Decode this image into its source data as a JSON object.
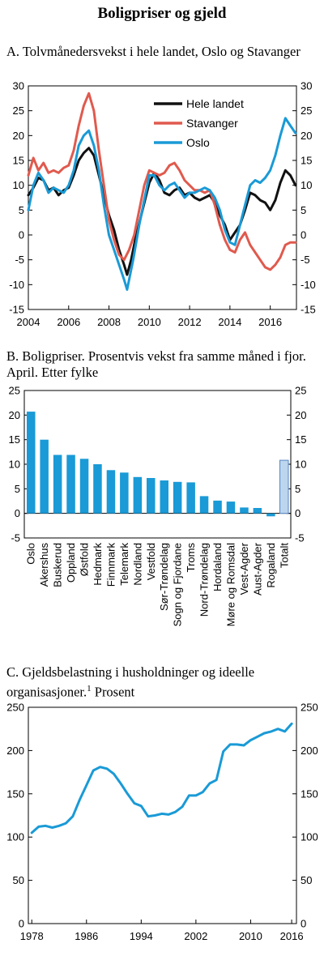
{
  "title": "Boligpriser og gjeld",
  "colors": {
    "black": "#111111",
    "red": "#e05a4e",
    "blue": "#1a9ad6",
    "bar": "#1a9ad6",
    "bar_light": "#bcd6ee"
  },
  "chart_data": [
    {
      "type": "line",
      "title": "A. Tolvmånedersvekst i hele landet, Oslo og Stavanger",
      "xlim": [
        2004,
        2017.3
      ],
      "ylim": [
        -15,
        30
      ],
      "x_ticks": [
        "2004",
        "2006",
        "2008",
        "2010",
        "2012",
        "2014",
        "2016"
      ],
      "y_ticks": [
        "30",
        "25",
        "20",
        "15",
        "10",
        "5",
        "0",
        "-5",
        "-10",
        "-15"
      ],
      "legend_position": "top-right",
      "series": [
        {
          "name": "Hele landet",
          "color": "#111111",
          "points": [
            [
              2004.0,
              8
            ],
            [
              2004.25,
              9.5
            ],
            [
              2004.5,
              11.5
            ],
            [
              2004.75,
              11
            ],
            [
              2005.0,
              9
            ],
            [
              2005.25,
              9.5
            ],
            [
              2005.5,
              8
            ],
            [
              2005.75,
              9
            ],
            [
              2006.0,
              9.5
            ],
            [
              2006.25,
              12
            ],
            [
              2006.5,
              15
            ],
            [
              2006.75,
              16.5
            ],
            [
              2007.0,
              17.5
            ],
            [
              2007.25,
              16
            ],
            [
              2007.5,
              12
            ],
            [
              2007.75,
              8
            ],
            [
              2008.0,
              4
            ],
            [
              2008.25,
              1
            ],
            [
              2008.5,
              -3
            ],
            [
              2008.75,
              -6
            ],
            [
              2008.9,
              -8
            ],
            [
              2009.1,
              -5
            ],
            [
              2009.3,
              -1
            ],
            [
              2009.6,
              4
            ],
            [
              2010.0,
              10.5
            ],
            [
              2010.25,
              12.5
            ],
            [
              2010.5,
              11
            ],
            [
              2010.75,
              8.5
            ],
            [
              2011.0,
              8
            ],
            [
              2011.25,
              9
            ],
            [
              2011.5,
              9.5
            ],
            [
              2011.75,
              8
            ],
            [
              2012.0,
              8.5
            ],
            [
              2012.25,
              7.5
            ],
            [
              2012.5,
              7
            ],
            [
              2012.75,
              7.5
            ],
            [
              2013.0,
              8
            ],
            [
              2013.25,
              6.5
            ],
            [
              2013.5,
              4
            ],
            [
              2013.75,
              2
            ],
            [
              2014.0,
              -1
            ],
            [
              2014.25,
              0.5
            ],
            [
              2014.5,
              2
            ],
            [
              2014.75,
              5
            ],
            [
              2015.0,
              8.5
            ],
            [
              2015.25,
              8
            ],
            [
              2015.5,
              7
            ],
            [
              2015.75,
              6.5
            ],
            [
              2016.0,
              5
            ],
            [
              2016.25,
              7
            ],
            [
              2016.5,
              10.5
            ],
            [
              2016.75,
              13
            ],
            [
              2017.0,
              12
            ],
            [
              2017.25,
              10
            ]
          ]
        },
        {
          "name": "Stavanger",
          "color": "#e05a4e",
          "points": [
            [
              2004.0,
              12
            ],
            [
              2004.25,
              15.5
            ],
            [
              2004.5,
              13
            ],
            [
              2004.75,
              14.5
            ],
            [
              2005.0,
              12.5
            ],
            [
              2005.25,
              13
            ],
            [
              2005.5,
              12.5
            ],
            [
              2005.75,
              13.5
            ],
            [
              2006.0,
              14
            ],
            [
              2006.25,
              17
            ],
            [
              2006.5,
              22
            ],
            [
              2006.75,
              26
            ],
            [
              2007.0,
              28.5
            ],
            [
              2007.25,
              25
            ],
            [
              2007.5,
              17
            ],
            [
              2007.75,
              10
            ],
            [
              2008.0,
              3
            ],
            [
              2008.25,
              -1
            ],
            [
              2008.5,
              -4
            ],
            [
              2008.75,
              -5
            ],
            [
              2009.0,
              -3
            ],
            [
              2009.25,
              0
            ],
            [
              2009.5,
              5
            ],
            [
              2009.75,
              10
            ],
            [
              2010.0,
              13
            ],
            [
              2010.25,
              12.5
            ],
            [
              2010.5,
              12
            ],
            [
              2010.75,
              12.5
            ],
            [
              2011.0,
              14
            ],
            [
              2011.25,
              14.5
            ],
            [
              2011.5,
              13
            ],
            [
              2011.75,
              11
            ],
            [
              2012.0,
              10
            ],
            [
              2012.25,
              9
            ],
            [
              2012.5,
              9
            ],
            [
              2012.75,
              8.5
            ],
            [
              2013.0,
              9
            ],
            [
              2013.25,
              6
            ],
            [
              2013.5,
              2
            ],
            [
              2013.75,
              -1
            ],
            [
              2014.0,
              -3
            ],
            [
              2014.25,
              -3.5
            ],
            [
              2014.5,
              -1
            ],
            [
              2014.75,
              0.5
            ],
            [
              2015.0,
              -2
            ],
            [
              2015.25,
              -3.5
            ],
            [
              2015.5,
              -5
            ],
            [
              2015.75,
              -6.5
            ],
            [
              2016.0,
              -7
            ],
            [
              2016.25,
              -6
            ],
            [
              2016.5,
              -4.5
            ],
            [
              2016.75,
              -2
            ],
            [
              2017.0,
              -1.5
            ],
            [
              2017.25,
              -1.5
            ]
          ]
        },
        {
          "name": "Oslo",
          "color": "#1a9ad6",
          "points": [
            [
              2004.0,
              5
            ],
            [
              2004.25,
              10
            ],
            [
              2004.5,
              12.5
            ],
            [
              2004.75,
              11
            ],
            [
              2005.0,
              8.5
            ],
            [
              2005.25,
              9.5
            ],
            [
              2005.5,
              9
            ],
            [
              2005.75,
              8.5
            ],
            [
              2006.0,
              10
            ],
            [
              2006.25,
              13
            ],
            [
              2006.5,
              18
            ],
            [
              2006.75,
              20
            ],
            [
              2007.0,
              21
            ],
            [
              2007.25,
              18
            ],
            [
              2007.5,
              13
            ],
            [
              2007.75,
              6
            ],
            [
              2008.0,
              0
            ],
            [
              2008.25,
              -3
            ],
            [
              2008.5,
              -6
            ],
            [
              2008.75,
              -9
            ],
            [
              2008.9,
              -11
            ],
            [
              2009.2,
              -5
            ],
            [
              2009.5,
              2
            ],
            [
              2009.8,
              8
            ],
            [
              2010.0,
              12
            ],
            [
              2010.25,
              12
            ],
            [
              2010.5,
              10
            ],
            [
              2010.75,
              9
            ],
            [
              2011.0,
              10
            ],
            [
              2011.25,
              10.5
            ],
            [
              2011.5,
              9
            ],
            [
              2011.75,
              7.5
            ],
            [
              2012.0,
              8.5
            ],
            [
              2012.25,
              8.5
            ],
            [
              2012.5,
              9
            ],
            [
              2012.75,
              9.5
            ],
            [
              2013.0,
              9
            ],
            [
              2013.25,
              7.5
            ],
            [
              2013.5,
              5
            ],
            [
              2013.75,
              1
            ],
            [
              2014.0,
              -1.5
            ],
            [
              2014.25,
              -2
            ],
            [
              2014.5,
              2
            ],
            [
              2014.75,
              6
            ],
            [
              2015.0,
              10
            ],
            [
              2015.25,
              11
            ],
            [
              2015.5,
              10.5
            ],
            [
              2015.75,
              11.5
            ],
            [
              2016.0,
              13
            ],
            [
              2016.25,
              16
            ],
            [
              2016.5,
              20
            ],
            [
              2016.75,
              23.5
            ],
            [
              2017.0,
              22
            ],
            [
              2017.25,
              20.5
            ]
          ]
        }
      ]
    },
    {
      "type": "bar",
      "title": "B. Boligpriser. Prosentvis vekst fra samme måned i fjor. April. Etter fylke",
      "ylim": [
        -5,
        25
      ],
      "y_ticks": [
        "25",
        "20",
        "15",
        "10",
        "5",
        "0",
        "-5"
      ],
      "categories": [
        "Oslo",
        "Akershus",
        "Buskerud",
        "Oppland",
        "Østfold",
        "Hedmark",
        "Finnmark",
        "Telemark",
        "Nordland",
        "Vestfold",
        "Sør-Trøndelag",
        "Sogn og Fjordane",
        "Troms",
        "Nord-Trøndelag",
        "Hordaland",
        "Møre og Romsdal",
        "Vest-Agder",
        "Aust-Agder",
        "Rogaland",
        "Totalt"
      ],
      "values": [
        20.7,
        15.0,
        11.9,
        11.9,
        11.1,
        10.0,
        8.8,
        8.3,
        7.4,
        7.2,
        6.7,
        6.4,
        6.3,
        3.5,
        2.6,
        2.4,
        1.2,
        1.1,
        -0.6,
        10.8
      ],
      "highlight": [
        "Totalt"
      ]
    },
    {
      "type": "line",
      "title": "C. Gjeldsbelastning i husholdninger og ideelle organisasjoner.",
      "title_superscript": "1",
      "title_suffix": " Prosent",
      "xlim": [
        1977.5,
        2016.7
      ],
      "ylim": [
        0,
        250
      ],
      "x_ticks": [
        "1978",
        "1986",
        "1994",
        "2002",
        "2010",
        "2016"
      ],
      "y_ticks": [
        "250",
        "200",
        "150",
        "100",
        "50",
        "0"
      ],
      "series": [
        {
          "color": "#1a9ad6",
          "points": [
            [
              1978,
              105
            ],
            [
              1979,
              112
            ],
            [
              1980,
              113
            ],
            [
              1981,
              111
            ],
            [
              1982,
              113
            ],
            [
              1983,
              116
            ],
            [
              1984,
              124
            ],
            [
              1985,
              143
            ],
            [
              1986,
              160
            ],
            [
              1987,
              177
            ],
            [
              1988,
              181
            ],
            [
              1989,
              179
            ],
            [
              1990,
              173
            ],
            [
              1991,
              162
            ],
            [
              1992,
              150
            ],
            [
              1993,
              139
            ],
            [
              1994,
              136
            ],
            [
              1995,
              124
            ],
            [
              1996,
              125
            ],
            [
              1997,
              127
            ],
            [
              1998,
              126
            ],
            [
              1999,
              129
            ],
            [
              2000,
              135
            ],
            [
              2001,
              148
            ],
            [
              2002,
              148
            ],
            [
              2003,
              152
            ],
            [
              2004,
              162
            ],
            [
              2005,
              166
            ],
            [
              2006,
              199
            ],
            [
              2007,
              207
            ],
            [
              2008,
              207
            ],
            [
              2009,
              206
            ],
            [
              2010,
              212
            ],
            [
              2011,
              216
            ],
            [
              2012,
              220
            ],
            [
              2013,
              222
            ],
            [
              2014,
              225
            ],
            [
              2015,
              222
            ],
            [
              2016,
              231
            ]
          ]
        }
      ]
    }
  ]
}
